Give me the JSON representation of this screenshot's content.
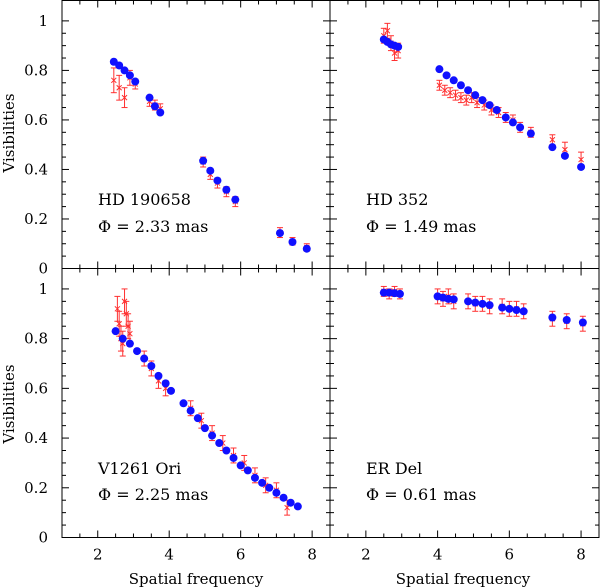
{
  "chart_data": {
    "type": "scatter",
    "figure": {
      "ylabel": "Visibilities",
      "xlabel": "Spatial frequency",
      "xlim": [
        1.0,
        8.5
      ],
      "ylim": [
        0,
        1.05
      ],
      "xticks": [
        2,
        4,
        6,
        8
      ],
      "yticks": [
        0,
        0.2,
        0.4,
        0.6,
        0.8,
        1
      ],
      "ytick_labels": [
        "0",
        "0.2",
        "0.4",
        "0.6",
        "0.8",
        "1"
      ],
      "colors": {
        "observed": "#ff3030",
        "model": "#1010ff"
      }
    },
    "panels": [
      {
        "id": "hd190658",
        "position": "top-left",
        "star": "HD 190658",
        "diameter_label": "Φ = 2.33 mas",
        "model": {
          "x": [
            2.45,
            2.6,
            2.75,
            2.9,
            3.05,
            3.45,
            3.6,
            3.75,
            4.95,
            5.15,
            5.35,
            5.6,
            5.85,
            7.1,
            7.45,
            7.85
          ],
          "y": [
            0.835,
            0.82,
            0.8,
            0.78,
            0.755,
            0.69,
            0.655,
            0.63,
            0.435,
            0.395,
            0.355,
            0.318,
            0.278,
            0.143,
            0.107,
            0.08
          ]
        },
        "observed": {
          "x": [
            2.45,
            2.6,
            2.75,
            2.9,
            3.05,
            3.45,
            3.6,
            3.75,
            4.95,
            5.15,
            5.35,
            5.6,
            5.85,
            7.1,
            7.45,
            7.85
          ],
          "y": [
            0.76,
            0.73,
            0.69,
            0.77,
            0.745,
            0.675,
            0.66,
            0.645,
            0.43,
            0.38,
            0.345,
            0.31,
            0.27,
            0.145,
            0.11,
            0.085
          ],
          "err": [
            0.05,
            0.05,
            0.04,
            0.03,
            0.02,
            0.02,
            0.02,
            0.02,
            0.02,
            0.02,
            0.02,
            0.02,
            0.02,
            0.02,
            0.015,
            0.015
          ]
        }
      },
      {
        "id": "hd352",
        "position": "top-right",
        "star": "HD 352",
        "diameter_label": "Φ = 1.49 mas",
        "model": {
          "x": [
            2.5,
            2.6,
            2.7,
            2.8,
            2.9,
            4.05,
            4.25,
            4.45,
            4.65,
            4.85,
            5.05,
            5.25,
            5.45,
            5.65,
            5.9,
            6.1,
            6.3,
            6.6,
            7.2,
            7.55,
            8.0
          ],
          "y": [
            0.925,
            0.915,
            0.905,
            0.9,
            0.895,
            0.805,
            0.78,
            0.76,
            0.74,
            0.72,
            0.7,
            0.68,
            0.66,
            0.64,
            0.61,
            0.59,
            0.57,
            0.545,
            0.49,
            0.455,
            0.41
          ]
        },
        "observed": {
          "x": [
            2.5,
            2.6,
            2.7,
            2.8,
            2.9,
            4.05,
            4.2,
            4.35,
            4.5,
            4.65,
            4.8,
            4.95,
            5.1,
            5.3,
            5.5,
            5.7,
            5.9,
            6.1,
            6.3,
            6.6,
            7.2,
            7.55,
            8.0
          ],
          "y": [
            0.94,
            0.96,
            0.91,
            0.87,
            0.88,
            0.74,
            0.72,
            0.71,
            0.7,
            0.69,
            0.68,
            0.69,
            0.67,
            0.66,
            0.64,
            0.63,
            0.61,
            0.6,
            0.57,
            0.55,
            0.52,
            0.48,
            0.44
          ],
          "err": [
            0.03,
            0.03,
            0.03,
            0.03,
            0.03,
            0.02,
            0.02,
            0.02,
            0.02,
            0.02,
            0.02,
            0.02,
            0.02,
            0.02,
            0.02,
            0.02,
            0.02,
            0.02,
            0.02,
            0.02,
            0.02,
            0.03,
            0.03
          ]
        }
      },
      {
        "id": "v1261ori",
        "position": "bottom-left",
        "star": "V1261 Ori",
        "diameter_label": "Φ = 2.25 mas",
        "model": {
          "x": [
            2.5,
            2.7,
            2.9,
            3.1,
            3.3,
            3.5,
            3.7,
            3.9,
            4.05,
            4.4,
            4.6,
            4.8,
            5.0,
            5.2,
            5.4,
            5.6,
            5.8,
            6.0,
            6.2,
            6.4,
            6.6,
            6.8,
            7.0,
            7.2,
            7.4,
            7.6
          ],
          "y": [
            0.83,
            0.8,
            0.78,
            0.75,
            0.72,
            0.69,
            0.65,
            0.62,
            0.59,
            0.54,
            0.51,
            0.48,
            0.44,
            0.41,
            0.38,
            0.35,
            0.32,
            0.29,
            0.27,
            0.24,
            0.22,
            0.2,
            0.18,
            0.16,
            0.14,
            0.125
          ]
        },
        "observed": {
          "x": [
            2.55,
            2.6,
            2.65,
            2.7,
            2.75,
            2.8,
            2.85,
            2.9,
            3.3,
            3.5,
            3.7,
            3.9,
            4.6,
            4.9,
            5.2,
            5.5,
            5.8,
            6.1,
            6.4,
            6.7,
            7.0,
            7.3
          ],
          "y": [
            0.92,
            0.86,
            0.8,
            0.78,
            0.95,
            0.9,
            0.85,
            0.82,
            0.72,
            0.68,
            0.63,
            0.6,
            0.52,
            0.47,
            0.42,
            0.38,
            0.33,
            0.3,
            0.25,
            0.21,
            0.19,
            0.12
          ],
          "err": [
            0.05,
            0.05,
            0.05,
            0.05,
            0.05,
            0.05,
            0.05,
            0.05,
            0.03,
            0.03,
            0.03,
            0.03,
            0.03,
            0.03,
            0.03,
            0.03,
            0.03,
            0.03,
            0.03,
            0.03,
            0.03,
            0.03
          ]
        }
      },
      {
        "id": "erdel",
        "position": "bottom-right",
        "star": "ER Del",
        "diameter_label": "Φ = 0.61 mas",
        "model": {
          "x": [
            2.5,
            2.65,
            2.8,
            2.95,
            4.0,
            4.15,
            4.3,
            4.45,
            4.85,
            5.05,
            5.25,
            5.45,
            5.8,
            6.0,
            6.2,
            6.4,
            7.2,
            7.6,
            8.05
          ],
          "y": [
            0.985,
            0.985,
            0.983,
            0.98,
            0.97,
            0.965,
            0.96,
            0.958,
            0.95,
            0.945,
            0.94,
            0.935,
            0.925,
            0.92,
            0.915,
            0.91,
            0.885,
            0.875,
            0.865
          ]
        },
        "observed": {
          "x": [
            2.5,
            2.65,
            2.8,
            2.95,
            4.0,
            4.15,
            4.3,
            4.45,
            4.85,
            5.05,
            5.25,
            5.45,
            5.8,
            6.0,
            6.2,
            6.4,
            7.2,
            7.6,
            8.05
          ],
          "y": [
            0.99,
            0.98,
            0.99,
            0.98,
            0.97,
            0.96,
            0.97,
            0.95,
            0.95,
            0.94,
            0.94,
            0.93,
            0.93,
            0.92,
            0.92,
            0.91,
            0.88,
            0.87,
            0.86
          ],
          "err": [
            0.02,
            0.02,
            0.02,
            0.02,
            0.03,
            0.03,
            0.03,
            0.03,
            0.03,
            0.03,
            0.03,
            0.03,
            0.03,
            0.03,
            0.03,
            0.03,
            0.03,
            0.03,
            0.03
          ]
        }
      }
    ]
  }
}
